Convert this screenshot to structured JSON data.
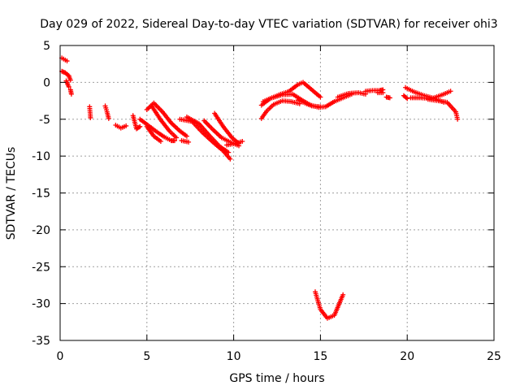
{
  "chart_data": {
    "type": "scatter",
    "title": "Day 029 of 2022, Sidereal Day-to-day VTEC variation (SDTVAR) for receiver ohi3",
    "xlabel": "GPS time / hours",
    "ylabel": "SDTVAR / TECUs",
    "xlim": [
      0,
      25
    ],
    "ylim": [
      -35,
      5
    ],
    "xticks": [
      0,
      5,
      10,
      15,
      20,
      25
    ],
    "yticks": [
      5,
      0,
      -5,
      -10,
      -15,
      -20,
      -25,
      -30,
      -35
    ],
    "grid": true,
    "marker": "+",
    "color": "#ff0000",
    "series": [
      {
        "name": "SDTVAR",
        "tracks": [
          [
            [
              0.1,
              3.3
            ],
            [
              0.4,
              2.9
            ]
          ],
          [
            [
              0.1,
              1.5
            ],
            [
              0.3,
              1.3
            ],
            [
              0.5,
              0.9
            ],
            [
              0.6,
              0.3
            ]
          ],
          [
            [
              0.35,
              0.2
            ],
            [
              0.5,
              -0.6
            ]
          ],
          [
            [
              0.6,
              -1.0
            ],
            [
              0.65,
              -1.6
            ]
          ],
          [
            [
              1.7,
              -3.3
            ],
            [
              1.75,
              -4.8
            ]
          ],
          [
            [
              2.6,
              -3.2
            ],
            [
              2.7,
              -4.0
            ],
            [
              2.8,
              -4.9
            ]
          ],
          [
            [
              3.2,
              -5.8
            ],
            [
              3.5,
              -6.2
            ],
            [
              3.8,
              -5.9
            ]
          ],
          [
            [
              4.2,
              -4.5
            ],
            [
              4.4,
              -6.3
            ],
            [
              4.6,
              -6.0
            ]
          ],
          [
            [
              4.6,
              -5.0
            ],
            [
              5.0,
              -5.7
            ],
            [
              5.5,
              -6.6
            ],
            [
              6.0,
              -7.4
            ],
            [
              6.4,
              -7.9
            ],
            [
              6.6,
              -7.9
            ]
          ],
          [
            [
              5.0,
              -6.0
            ],
            [
              5.4,
              -7.3
            ],
            [
              5.8,
              -8.0
            ]
          ],
          [
            [
              5.0,
              -3.7
            ],
            [
              5.4,
              -2.8
            ],
            [
              5.9,
              -4.0
            ],
            [
              6.4,
              -5.5
            ],
            [
              6.9,
              -6.6
            ],
            [
              7.3,
              -7.3
            ]
          ],
          [
            [
              5.3,
              -3.3
            ],
            [
              5.8,
              -5.1
            ],
            [
              6.3,
              -6.6
            ],
            [
              6.7,
              -7.5
            ]
          ],
          [
            [
              7.0,
              -7.9
            ],
            [
              7.4,
              -8.1
            ]
          ],
          [
            [
              6.9,
              -5.0
            ],
            [
              7.6,
              -5.3
            ],
            [
              8.2,
              -6.8
            ],
            [
              8.8,
              -8.1
            ],
            [
              9.4,
              -9.3
            ],
            [
              9.8,
              -10.4
            ]
          ],
          [
            [
              7.3,
              -4.7
            ],
            [
              8.0,
              -5.6
            ],
            [
              8.6,
              -7.2
            ],
            [
              9.2,
              -8.7
            ],
            [
              9.7,
              -9.5
            ]
          ],
          [
            [
              8.3,
              -5.2
            ],
            [
              8.8,
              -6.4
            ],
            [
              9.3,
              -7.5
            ],
            [
              9.8,
              -8.1
            ],
            [
              10.3,
              -8.6
            ]
          ],
          [
            [
              8.9,
              -4.2
            ],
            [
              9.4,
              -6.0
            ],
            [
              9.9,
              -7.5
            ],
            [
              10.3,
              -8.3
            ]
          ],
          [
            [
              9.6,
              -8.5
            ],
            [
              10.1,
              -8.3
            ],
            [
              10.5,
              -8.0
            ]
          ],
          [
            [
              11.6,
              -4.9
            ],
            [
              11.9,
              -3.9
            ],
            [
              12.3,
              -3.0
            ],
            [
              12.8,
              -2.5
            ],
            [
              13.3,
              -2.6
            ],
            [
              13.8,
              -2.9
            ]
          ],
          [
            [
              11.6,
              -3.1
            ],
            [
              12.1,
              -2.2
            ],
            [
              12.7,
              -1.6
            ],
            [
              13.1,
              -1.3
            ]
          ],
          [
            [
              11.7,
              -2.6
            ],
            [
              12.2,
              -2.1
            ],
            [
              12.8,
              -1.7
            ],
            [
              13.4,
              -1.6
            ],
            [
              14.0,
              -2.5
            ],
            [
              14.5,
              -3.2
            ],
            [
              15.0,
              -3.3
            ]
          ],
          [
            [
              13.2,
              -1.2
            ],
            [
              13.7,
              -0.3
            ],
            [
              14.0,
              0.0
            ],
            [
              14.4,
              -0.8
            ],
            [
              15.0,
              -2.0
            ]
          ],
          [
            [
              13.7,
              -2.4
            ],
            [
              14.3,
              -3.0
            ],
            [
              14.9,
              -3.4
            ],
            [
              15.3,
              -3.3
            ],
            [
              15.8,
              -2.6
            ],
            [
              16.3,
              -2.1
            ],
            [
              16.8,
              -1.6
            ]
          ],
          [
            [
              16.0,
              -2.0
            ],
            [
              16.6,
              -1.5
            ],
            [
              17.2,
              -1.4
            ],
            [
              17.6,
              -1.6
            ]
          ],
          [
            [
              17.6,
              -1.2
            ],
            [
              18.0,
              -1.1
            ],
            [
              18.4,
              -1.1
            ],
            [
              18.6,
              -1.0
            ]
          ],
          [
            [
              18.3,
              -1.4
            ],
            [
              18.6,
              -1.4
            ]
          ],
          [
            [
              18.8,
              -2.0
            ],
            [
              19.0,
              -2.1
            ]
          ],
          [
            [
              19.8,
              -1.8
            ],
            [
              20.0,
              -2.2
            ]
          ],
          [
            [
              19.9,
              -0.7
            ],
            [
              20.4,
              -1.3
            ],
            [
              21.0,
              -1.8
            ],
            [
              21.6,
              -2.2
            ],
            [
              22.1,
              -2.7
            ]
          ],
          [
            [
              20.2,
              -2.1
            ],
            [
              20.8,
              -2.1
            ],
            [
              21.4,
              -2.2
            ],
            [
              22.0,
              -1.7
            ],
            [
              22.5,
              -1.2
            ]
          ],
          [
            [
              21.2,
              -2.3
            ],
            [
              21.8,
              -2.5
            ],
            [
              22.3,
              -2.7
            ],
            [
              22.8,
              -4.0
            ],
            [
              22.9,
              -5.0
            ]
          ],
          [
            [
              14.7,
              -28.4
            ],
            [
              15.0,
              -30.8
            ],
            [
              15.4,
              -32.0
            ],
            [
              15.8,
              -31.6
            ],
            [
              16.3,
              -28.8
            ]
          ]
        ]
      }
    ]
  }
}
